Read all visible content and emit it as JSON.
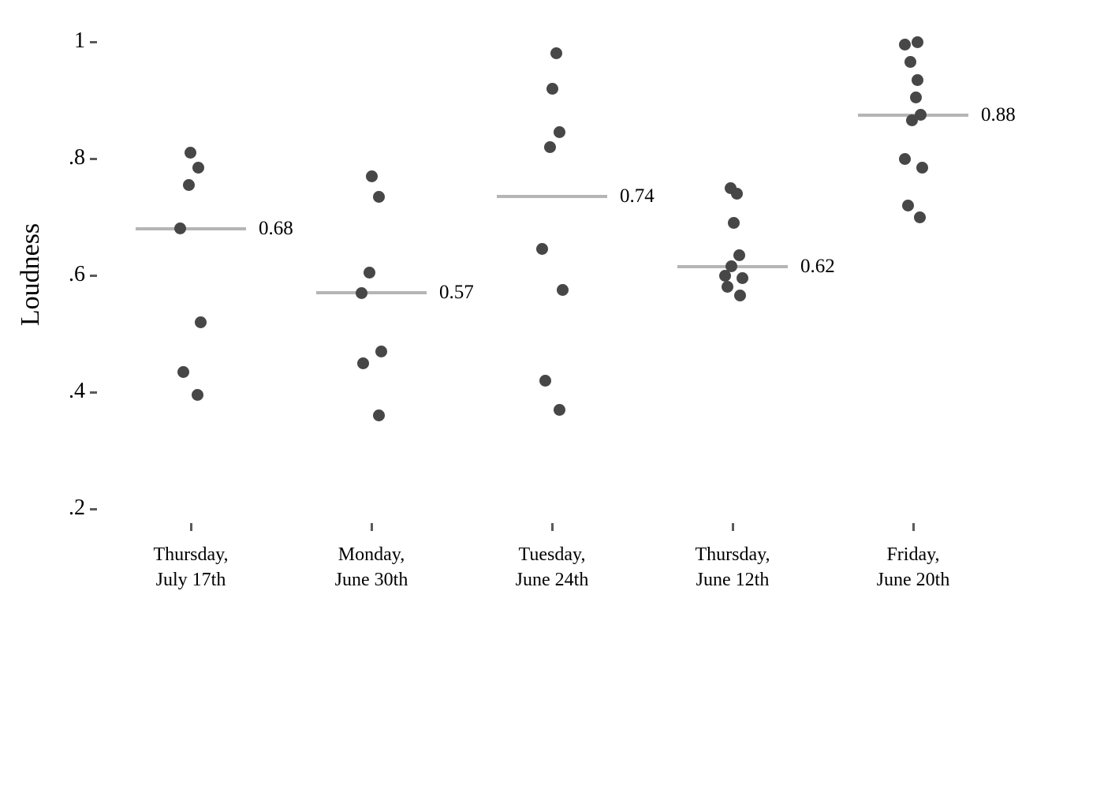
{
  "chart_data": {
    "type": "scatter",
    "subtype": "strip-plot-with-median-lines",
    "title": "",
    "xlabel": "",
    "ylabel": "Loudness",
    "ylim": [
      0.2,
      1.0
    ],
    "grid": false,
    "legend": null,
    "colors": {
      "point": "#474747",
      "median_line": "#b5b5b5",
      "text": "#000000",
      "tick": "#5a5a5a",
      "background": "#ffffff"
    },
    "y_ticks": [
      {
        "value": 1.0,
        "label": "1"
      },
      {
        "value": 0.8,
        "label": ".8"
      },
      {
        "value": 0.6,
        "label": ".6"
      },
      {
        "value": 0.4,
        "label": ".4"
      },
      {
        "value": 0.2,
        "label": ".2"
      }
    ],
    "groups": [
      {
        "label_line1": "Thursday,",
        "label_line2": "July 17th",
        "median": 0.68,
        "median_label": "0.68",
        "points": [
          {
            "v": 0.81,
            "dx": -1
          },
          {
            "v": 0.785,
            "dx": 9
          },
          {
            "v": 0.755,
            "dx": -3
          },
          {
            "v": 0.68,
            "dx": -14
          },
          {
            "v": 0.52,
            "dx": 12
          },
          {
            "v": 0.435,
            "dx": -10
          },
          {
            "v": 0.395,
            "dx": 8
          }
        ]
      },
      {
        "label_line1": "Monday,",
        "label_line2": "June 30th",
        "median": 0.57,
        "median_label": "0.57",
        "points": [
          {
            "v": 0.77,
            "dx": 0
          },
          {
            "v": 0.735,
            "dx": 9
          },
          {
            "v": 0.605,
            "dx": -3
          },
          {
            "v": 0.57,
            "dx": -13
          },
          {
            "v": 0.47,
            "dx": 12
          },
          {
            "v": 0.45,
            "dx": -11
          },
          {
            "v": 0.36,
            "dx": 9
          }
        ]
      },
      {
        "label_line1": "Tuesday,",
        "label_line2": "June 24th",
        "median": 0.735,
        "median_label": "0.74",
        "points": [
          {
            "v": 0.98,
            "dx": 5
          },
          {
            "v": 0.92,
            "dx": 0
          },
          {
            "v": 0.845,
            "dx": 9
          },
          {
            "v": 0.82,
            "dx": -3
          },
          {
            "v": 0.645,
            "dx": -13
          },
          {
            "v": 0.575,
            "dx": 13
          },
          {
            "v": 0.42,
            "dx": -9
          },
          {
            "v": 0.37,
            "dx": 9
          }
        ]
      },
      {
        "label_line1": "Thursday,",
        "label_line2": "June 12th",
        "median": 0.615,
        "median_label": "0.62",
        "points": [
          {
            "v": 0.75,
            "dx": -3
          },
          {
            "v": 0.74,
            "dx": 5
          },
          {
            "v": 0.69,
            "dx": 1
          },
          {
            "v": 0.635,
            "dx": 8
          },
          {
            "v": 0.615,
            "dx": -2
          },
          {
            "v": 0.6,
            "dx": -10
          },
          {
            "v": 0.595,
            "dx": 12
          },
          {
            "v": 0.58,
            "dx": -7
          },
          {
            "v": 0.565,
            "dx": 9
          }
        ]
      },
      {
        "label_line1": "Friday,",
        "label_line2": "June 20th",
        "median": 0.875,
        "median_label": "0.88",
        "points": [
          {
            "v": 1.0,
            "dx": 5
          },
          {
            "v": 0.995,
            "dx": -11
          },
          {
            "v": 0.965,
            "dx": -4
          },
          {
            "v": 0.935,
            "dx": 5
          },
          {
            "v": 0.905,
            "dx": 3
          },
          {
            "v": 0.875,
            "dx": 9
          },
          {
            "v": 0.865,
            "dx": -2
          },
          {
            "v": 0.8,
            "dx": -11
          },
          {
            "v": 0.785,
            "dx": 11
          },
          {
            "v": 0.72,
            "dx": -7
          },
          {
            "v": 0.7,
            "dx": 8
          }
        ]
      }
    ]
  }
}
